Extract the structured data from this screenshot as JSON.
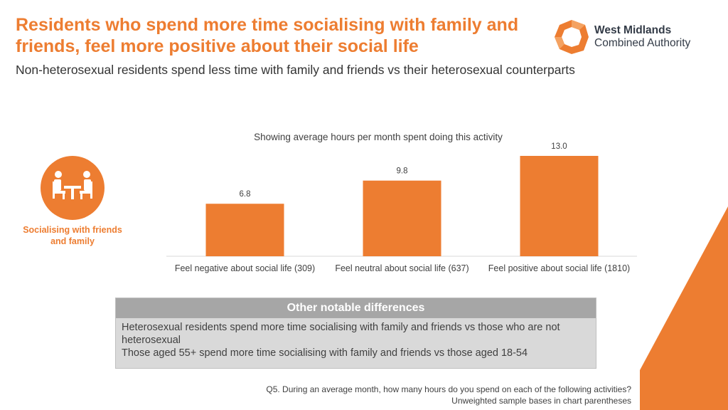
{
  "header": {
    "title": "Residents who spend more time socialising with family and friends, feel more positive about their social life",
    "subtitle": "Non-heterosexual residents spend less time with family and friends vs their heterosexual counterparts"
  },
  "logo": {
    "line1": "West Midlands",
    "line2": "Combined Authority"
  },
  "sidebar": {
    "icon": "people-at-table-icon",
    "label": "Socialising with friends and family"
  },
  "colors": {
    "accent": "#ED7D31",
    "box_header": "#A6A6A6",
    "box_body": "#D9D9D9"
  },
  "chart_data": {
    "type": "bar",
    "title": "Showing average hours per month spent doing this activity",
    "categories": [
      "Feel negative about social life (309)",
      "Feel neutral about social life (637)",
      "Feel positive about social life (1810)"
    ],
    "values": [
      6.8,
      9.8,
      13.0
    ],
    "value_labels": [
      "6.8",
      "9.8",
      "13.0"
    ],
    "xlabel": "",
    "ylabel": "",
    "ylim": [
      0,
      13
    ],
    "grid": false,
    "legend": "none"
  },
  "notes_box": {
    "header": "Other notable differences",
    "lines": [
      "Heterosexual residents spend more time socialising with family and friends vs those who are not heterosexual",
      "Those aged 55+ spend more time socialising with family and friends vs those aged 18-54"
    ]
  },
  "footnote": {
    "line1": "Q5. During an average month, how many hours do you spend on each of the following activities?",
    "line2": "Unweighted sample bases in chart parentheses"
  }
}
